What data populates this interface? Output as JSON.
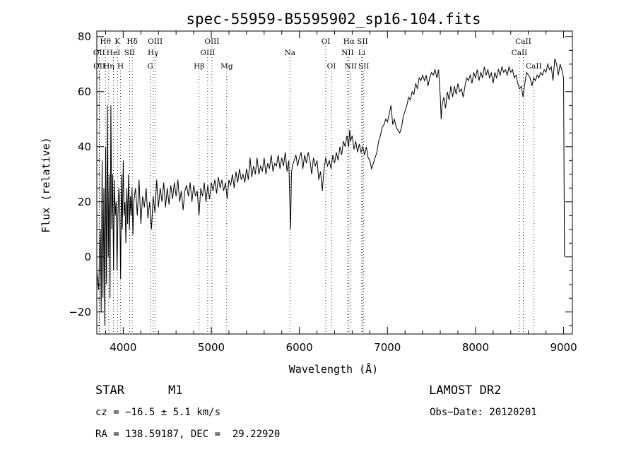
{
  "chart_data": {
    "type": "line",
    "title": "spec-55959-B5595902_sp16-104.fits",
    "xlabel": "Wavelength (Å)",
    "ylabel": "Flux (relative)",
    "xlim": [
      3700,
      9100
    ],
    "ylim": [
      -28,
      82
    ],
    "xticks": [
      4000,
      5000,
      6000,
      7000,
      8000,
      9000
    ],
    "yticks": [
      -20,
      0,
      20,
      40,
      60,
      80
    ],
    "grid": false,
    "series": [
      {
        "points": [
          [
            3700,
            -5
          ],
          [
            3720,
            -12
          ],
          [
            3740,
            10
          ],
          [
            3750,
            -20
          ],
          [
            3760,
            35
          ],
          [
            3770,
            -15
          ],
          [
            3780,
            25
          ],
          [
            3790,
            -25
          ],
          [
            3800,
            40
          ],
          [
            3810,
            -10
          ],
          [
            3820,
            55
          ],
          [
            3830,
            0
          ],
          [
            3840,
            30
          ],
          [
            3850,
            -15
          ],
          [
            3860,
            55
          ],
          [
            3870,
            10
          ],
          [
            3880,
            30
          ],
          [
            3890,
            -5
          ],
          [
            3900,
            28
          ],
          [
            3910,
            15
          ],
          [
            3920,
            20
          ],
          [
            3930,
            -5
          ],
          [
            3940,
            15
          ],
          [
            3950,
            25
          ],
          [
            3960,
            20
          ],
          [
            3970,
            -8
          ],
          [
            3980,
            30
          ],
          [
            3990,
            10
          ],
          [
            4000,
            35
          ],
          [
            4010,
            15
          ],
          [
            4020,
            20
          ],
          [
            4030,
            5
          ],
          [
            4040,
            25
          ],
          [
            4050,
            12
          ],
          [
            4060,
            30
          ],
          [
            4070,
            10
          ],
          [
            4080,
            22
          ],
          [
            4090,
            15
          ],
          [
            4100,
            25
          ],
          [
            4110,
            8
          ],
          [
            4120,
            20
          ],
          [
            4140,
            25
          ],
          [
            4160,
            15
          ],
          [
            4180,
            28
          ],
          [
            4200,
            12
          ],
          [
            4220,
            22
          ],
          [
            4240,
            18
          ],
          [
            4260,
            25
          ],
          [
            4280,
            14
          ],
          [
            4300,
            20
          ],
          [
            4320,
            10
          ],
          [
            4340,
            22
          ],
          [
            4360,
            16
          ],
          [
            4380,
            28
          ],
          [
            4400,
            18
          ],
          [
            4420,
            25
          ],
          [
            4440,
            20
          ],
          [
            4460,
            27
          ],
          [
            4480,
            18
          ],
          [
            4500,
            25
          ],
          [
            4520,
            19
          ],
          [
            4540,
            26
          ],
          [
            4560,
            21
          ],
          [
            4580,
            27
          ],
          [
            4600,
            22
          ],
          [
            4620,
            28
          ],
          [
            4640,
            20
          ],
          [
            4660,
            24
          ],
          [
            4680,
            17
          ],
          [
            4700,
            24
          ],
          [
            4720,
            26
          ],
          [
            4740,
            22
          ],
          [
            4760,
            27
          ],
          [
            4780,
            20
          ],
          [
            4800,
            26
          ],
          [
            4820,
            22
          ],
          [
            4840,
            24
          ],
          [
            4860,
            15
          ],
          [
            4880,
            25
          ],
          [
            4900,
            22
          ],
          [
            4920,
            27
          ],
          [
            4940,
            20
          ],
          [
            4960,
            26
          ],
          [
            4980,
            21
          ],
          [
            5000,
            27
          ],
          [
            5020,
            24
          ],
          [
            5040,
            28
          ],
          [
            5060,
            23
          ],
          [
            5080,
            29
          ],
          [
            5100,
            25
          ],
          [
            5120,
            28
          ],
          [
            5140,
            24
          ],
          [
            5160,
            27
          ],
          [
            5180,
            21
          ],
          [
            5200,
            28
          ],
          [
            5220,
            26
          ],
          [
            5240,
            30
          ],
          [
            5260,
            25
          ],
          [
            5280,
            31
          ],
          [
            5300,
            27
          ],
          [
            5320,
            32
          ],
          [
            5340,
            28
          ],
          [
            5360,
            30
          ],
          [
            5380,
            27
          ],
          [
            5400,
            32
          ],
          [
            5420,
            28
          ],
          [
            5440,
            36
          ],
          [
            5460,
            29
          ],
          [
            5480,
            33
          ],
          [
            5500,
            30
          ],
          [
            5520,
            36
          ],
          [
            5540,
            30
          ],
          [
            5560,
            33
          ],
          [
            5580,
            31
          ],
          [
            5600,
            36
          ],
          [
            5620,
            30
          ],
          [
            5640,
            34
          ],
          [
            5660,
            32
          ],
          [
            5680,
            37
          ],
          [
            5700,
            31
          ],
          [
            5720,
            34
          ],
          [
            5740,
            33
          ],
          [
            5760,
            37
          ],
          [
            5780,
            32
          ],
          [
            5800,
            36
          ],
          [
            5820,
            33
          ],
          [
            5840,
            38
          ],
          [
            5860,
            31
          ],
          [
            5880,
            35
          ],
          [
            5890,
            22
          ],
          [
            5900,
            10
          ],
          [
            5910,
            30
          ],
          [
            5920,
            33
          ],
          [
            5940,
            35
          ],
          [
            5960,
            37
          ],
          [
            5980,
            33
          ],
          [
            6000,
            36
          ],
          [
            6020,
            38
          ],
          [
            6040,
            32
          ],
          [
            6060,
            37
          ],
          [
            6080,
            34
          ],
          [
            6100,
            38
          ],
          [
            6120,
            35
          ],
          [
            6140,
            30
          ],
          [
            6160,
            36
          ],
          [
            6180,
            33
          ],
          [
            6200,
            35
          ],
          [
            6220,
            28
          ],
          [
            6240,
            31
          ],
          [
            6260,
            24
          ],
          [
            6280,
            32
          ],
          [
            6300,
            36
          ],
          [
            6320,
            33
          ],
          [
            6340,
            35
          ],
          [
            6360,
            32
          ],
          [
            6380,
            37
          ],
          [
            6400,
            34
          ],
          [
            6420,
            38
          ],
          [
            6440,
            35
          ],
          [
            6460,
            40
          ],
          [
            6480,
            37
          ],
          [
            6500,
            42
          ],
          [
            6520,
            40
          ],
          [
            6540,
            44
          ],
          [
            6560,
            40
          ],
          [
            6570,
            46
          ],
          [
            6580,
            42
          ],
          [
            6600,
            44
          ],
          [
            6620,
            39
          ],
          [
            6640,
            42
          ],
          [
            6660,
            38
          ],
          [
            6680,
            41
          ],
          [
            6700,
            38
          ],
          [
            6720,
            40
          ],
          [
            6740,
            37
          ],
          [
            6760,
            40
          ],
          [
            6780,
            36
          ],
          [
            6800,
            35
          ],
          [
            6820,
            32
          ],
          [
            6840,
            34
          ],
          [
            6860,
            36
          ],
          [
            6880,
            38
          ],
          [
            6900,
            42
          ],
          [
            6920,
            44
          ],
          [
            6940,
            47
          ],
          [
            6960,
            48
          ],
          [
            6980,
            50
          ],
          [
            7000,
            49
          ],
          [
            7020,
            52
          ],
          [
            7040,
            55
          ],
          [
            7060,
            48
          ],
          [
            7080,
            50
          ],
          [
            7100,
            47
          ],
          [
            7120,
            46
          ],
          [
            7140,
            45
          ],
          [
            7160,
            47
          ],
          [
            7180,
            51
          ],
          [
            7200,
            53
          ],
          [
            7220,
            55
          ],
          [
            7240,
            58
          ],
          [
            7260,
            57
          ],
          [
            7280,
            60
          ],
          [
            7300,
            59
          ],
          [
            7320,
            63
          ],
          [
            7340,
            61
          ],
          [
            7360,
            65
          ],
          [
            7380,
            64
          ],
          [
            7400,
            66
          ],
          [
            7420,
            64
          ],
          [
            7440,
            66
          ],
          [
            7460,
            62
          ],
          [
            7480,
            65
          ],
          [
            7500,
            67
          ],
          [
            7520,
            66
          ],
          [
            7540,
            68
          ],
          [
            7560,
            65
          ],
          [
            7580,
            68
          ],
          [
            7600,
            58
          ],
          [
            7610,
            50
          ],
          [
            7620,
            55
          ],
          [
            7640,
            58
          ],
          [
            7660,
            54
          ],
          [
            7680,
            60
          ],
          [
            7700,
            57
          ],
          [
            7720,
            62
          ],
          [
            7740,
            58
          ],
          [
            7760,
            62
          ],
          [
            7780,
            59
          ],
          [
            7800,
            63
          ],
          [
            7820,
            60
          ],
          [
            7840,
            61
          ],
          [
            7860,
            58
          ],
          [
            7880,
            62
          ],
          [
            7900,
            65
          ],
          [
            7920,
            64
          ],
          [
            7940,
            66
          ],
          [
            7960,
            63
          ],
          [
            7980,
            67
          ],
          [
            8000,
            65
          ],
          [
            8020,
            68
          ],
          [
            8040,
            64
          ],
          [
            8060,
            67
          ],
          [
            8080,
            65
          ],
          [
            8100,
            69
          ],
          [
            8120,
            66
          ],
          [
            8140,
            68
          ],
          [
            8160,
            65
          ],
          [
            8180,
            67
          ],
          [
            8200,
            63
          ],
          [
            8220,
            67
          ],
          [
            8240,
            65
          ],
          [
            8260,
            68
          ],
          [
            8280,
            66
          ],
          [
            8300,
            69
          ],
          [
            8320,
            67
          ],
          [
            8340,
            68
          ],
          [
            8360,
            66
          ],
          [
            8380,
            69
          ],
          [
            8400,
            67
          ],
          [
            8420,
            68
          ],
          [
            8440,
            65
          ],
          [
            8460,
            66
          ],
          [
            8480,
            63
          ],
          [
            8500,
            61
          ],
          [
            8520,
            62
          ],
          [
            8540,
            58
          ],
          [
            8560,
            63
          ],
          [
            8580,
            67
          ],
          [
            8600,
            66
          ],
          [
            8620,
            65
          ],
          [
            8640,
            62
          ],
          [
            8660,
            65
          ],
          [
            8680,
            64
          ],
          [
            8700,
            66
          ],
          [
            8720,
            65
          ],
          [
            8740,
            67
          ],
          [
            8760,
            66
          ],
          [
            8780,
            68
          ],
          [
            8800,
            67
          ],
          [
            8820,
            70
          ],
          [
            8840,
            68
          ],
          [
            8860,
            69
          ],
          [
            8880,
            64
          ],
          [
            8900,
            72
          ],
          [
            8920,
            70
          ],
          [
            8940,
            66
          ],
          [
            8960,
            70
          ],
          [
            8980,
            68
          ],
          [
            9000,
            65
          ],
          [
            9010,
            0
          ]
        ]
      }
    ],
    "lines": [
      {
        "label": "Hθ",
        "x": 3798,
        "row": 0
      },
      {
        "label": "OII",
        "x": 3727,
        "row": 1
      },
      {
        "label": "OII",
        "x": 3729,
        "row": 2
      },
      {
        "label": "Hη",
        "x": 3835,
        "row": 2
      },
      {
        "label": "K",
        "x": 3934,
        "row": 0
      },
      {
        "label": "HeI",
        "x": 3889,
        "row": 1
      },
      {
        "label": "SII",
        "x": 4072,
        "row": 1
      },
      {
        "label": "H",
        "x": 3969,
        "row": 2
      },
      {
        "label": "Hδ",
        "x": 4102,
        "row": 0
      },
      {
        "label": "OIII",
        "x": 4363,
        "row": 0
      },
      {
        "label": "Hγ",
        "x": 4340,
        "row": 1
      },
      {
        "label": "G",
        "x": 4305,
        "row": 2
      },
      {
        "label": "Hβ",
        "x": 4861,
        "row": 2
      },
      {
        "label": "OIII",
        "x": 5007,
        "row": 0
      },
      {
        "label": "OIII",
        "x": 4959,
        "row": 1
      },
      {
        "label": "Mg",
        "x": 5175,
        "row": 2
      },
      {
        "label": "Na",
        "x": 5893,
        "row": 1
      },
      {
        "label": "OI",
        "x": 6300,
        "row": 0
      },
      {
        "label": "OI",
        "x": 6364,
        "row": 2
      },
      {
        "label": "Hα",
        "x": 6563,
        "row": 0
      },
      {
        "label": "SII",
        "x": 6716,
        "row": 0
      },
      {
        "label": "NII",
        "x": 6548,
        "row": 1
      },
      {
        "label": "Li",
        "x": 6708,
        "row": 1
      },
      {
        "label": "NII",
        "x": 6583,
        "row": 2
      },
      {
        "label": "SII",
        "x": 6731,
        "row": 2
      },
      {
        "label": "CaII",
        "x": 8542,
        "row": 0
      },
      {
        "label": "CaII",
        "x": 8498,
        "row": 1
      },
      {
        "label": "CaII",
        "x": 8662,
        "row": 2
      }
    ]
  },
  "info": {
    "class": "STAR",
    "subclass": "M1",
    "survey": "LAMOST DR2",
    "cz": "cz = −16.5 ± 5.1 km/s",
    "obs_date": "Obs−Date: 20120201",
    "coords": "RA = 138.59187, DEC =  29.22920"
  }
}
